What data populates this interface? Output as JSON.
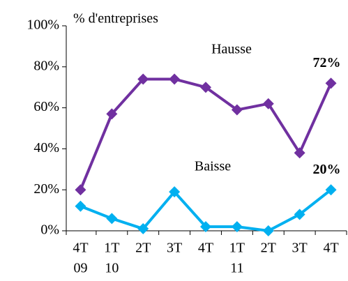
{
  "chart_data": {
    "type": "line",
    "y_axis_label": "% d'entreprises",
    "categories": [
      [
        "4T",
        "09"
      ],
      [
        "1T",
        "10"
      ],
      [
        "2T"
      ],
      [
        "3T"
      ],
      [
        "4T"
      ],
      [
        "1T",
        "11"
      ],
      [
        "2T"
      ],
      [
        "3T"
      ],
      [
        "4T"
      ]
    ],
    "series": [
      {
        "name": "Hausse",
        "color": "#7030a0",
        "values": [
          20,
          57,
          74,
          74,
          70,
          59,
          62,
          38,
          72
        ],
        "value_labels": [
          null,
          null,
          null,
          null,
          null,
          null,
          null,
          null,
          "72%"
        ]
      },
      {
        "name": "Baisse",
        "color": "#00b0f0",
        "values": [
          12,
          6,
          1,
          19,
          2,
          2,
          0,
          8,
          20
        ],
        "value_labels": [
          null,
          null,
          null,
          null,
          null,
          null,
          null,
          null,
          "20%"
        ]
      }
    ],
    "ylim": [
      0,
      100
    ],
    "yticks": [
      {
        "value": 0,
        "label": "0%"
      },
      {
        "value": 20,
        "label": "20%"
      },
      {
        "value": 40,
        "label": "40%"
      },
      {
        "value": 60,
        "label": "60%"
      },
      {
        "value": 80,
        "label": "80%"
      },
      {
        "value": 100,
        "label": "100%"
      }
    ],
    "grid": false
  }
}
